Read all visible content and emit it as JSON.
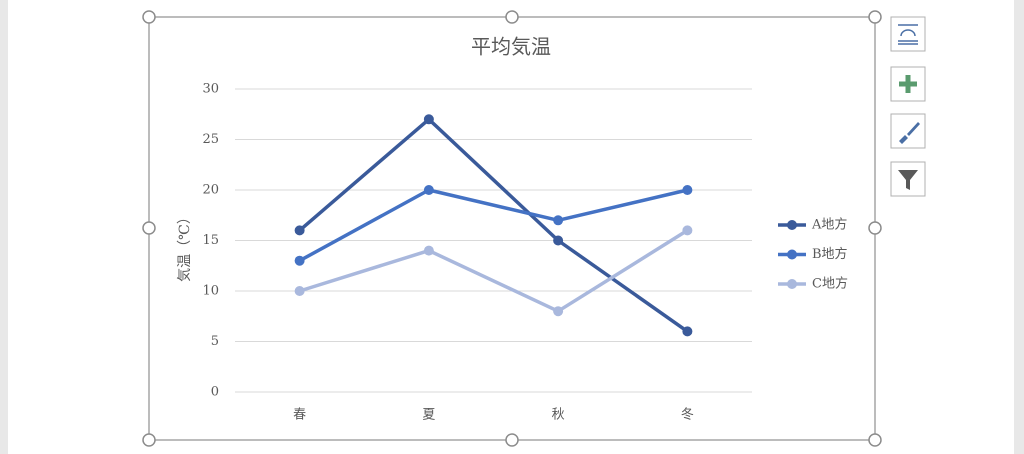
{
  "chart_data": {
    "type": "line",
    "title": "平均気温",
    "y_label": "気温（℃）",
    "categories": [
      "春",
      "夏",
      "秋",
      "冬"
    ],
    "series": [
      {
        "name": "A地方",
        "color": "#3a5a9a",
        "values": [
          16,
          27,
          15,
          6
        ]
      },
      {
        "name": "B地方",
        "color": "#4472c4",
        "values": [
          13,
          20,
          17,
          20
        ]
      },
      {
        "name": "C地方",
        "color": "#a9b8dd",
        "values": [
          10,
          14,
          8,
          16
        ]
      }
    ],
    "ylim": [
      0,
      30
    ],
    "yticks": [
      0,
      5,
      10,
      15,
      20,
      25,
      30
    ],
    "grid": true,
    "legend": "right"
  }
}
